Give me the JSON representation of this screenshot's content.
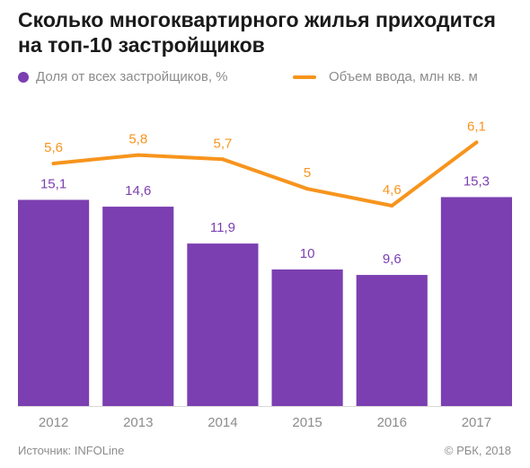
{
  "title": "Сколько многоквартирного жилья приходится на топ-10 застройщиков",
  "legend": {
    "bars_label": "Доля от всех застройщиков, %",
    "line_label": "Объем ввода, млн кв. м"
  },
  "colors": {
    "bar": "#7b3fb1",
    "line": "#f7941d",
    "bar_label": "#7b3fb1",
    "line_label": "#f7941d",
    "axis_text": "#8c8c8c",
    "grid": "#d9d9d9"
  },
  "chart_data": {
    "type": "bar",
    "categories": [
      "2012",
      "2013",
      "2014",
      "2015",
      "2016",
      "2017"
    ],
    "series": [
      {
        "name": "Доля от всех застройщиков, %",
        "type": "bar",
        "values": [
          15.1,
          14.6,
          11.9,
          10,
          9.6,
          15.3
        ],
        "labels": [
          "15,1",
          "14,6",
          "11,9",
          "10",
          "9,6",
          "15,3"
        ]
      },
      {
        "name": "Объем ввода, млн кв. м",
        "type": "line",
        "values": [
          5.6,
          5.8,
          5.7,
          5,
          4.6,
          6.1
        ],
        "labels": [
          "5,6",
          "5,8",
          "5,7",
          "5",
          "4,6",
          "6,1"
        ]
      }
    ],
    "title": "Сколько многоквартирного жилья приходится на топ-10 застройщиков",
    "legend_position": "top-left"
  },
  "footer": {
    "source": "Источник: INFOLine",
    "copyright": "© РБК, 2018"
  }
}
